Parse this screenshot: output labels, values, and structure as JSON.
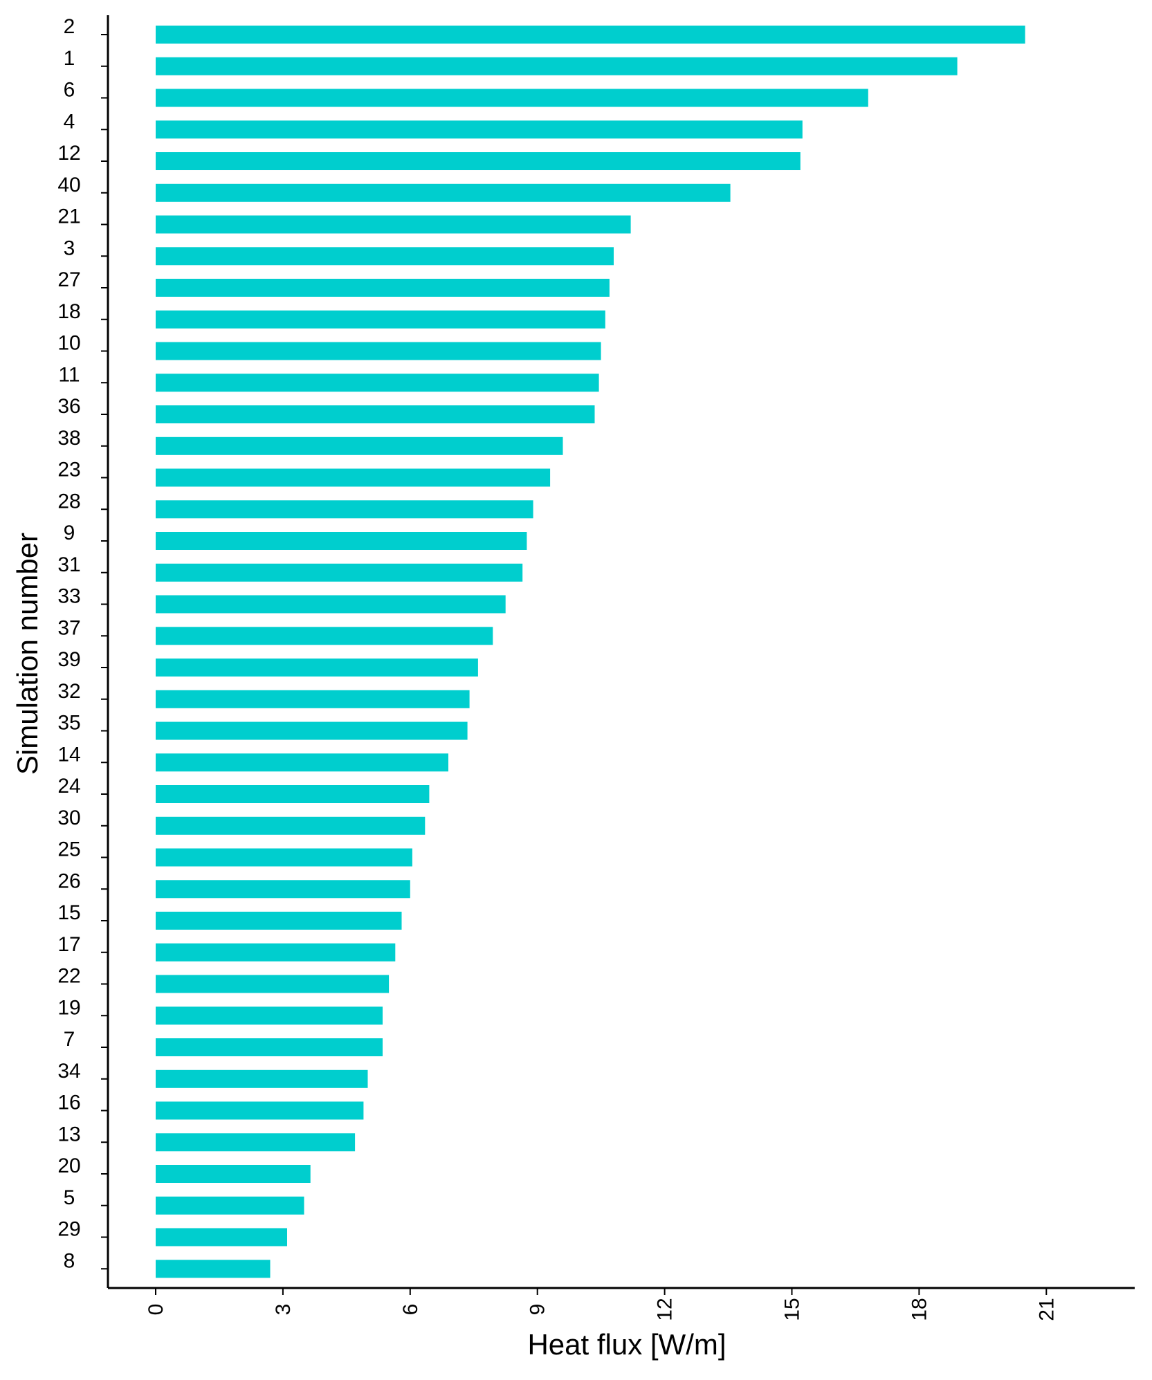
{
  "colors": {
    "bar": "#00CECE",
    "axis": "#000000",
    "background": "#FFFFFF"
  },
  "chart_data": {
    "type": "bar",
    "orientation": "horizontal",
    "title": "",
    "xlabel": "Heat flux [W/m]",
    "ylabel": "Simulation number",
    "xlim": [
      0,
      23
    ],
    "xticks": [
      0,
      3,
      6,
      9,
      12,
      15,
      18,
      21
    ],
    "grid": false,
    "categories": [
      "2",
      "1",
      "6",
      "4",
      "12",
      "40",
      "21",
      "3",
      "27",
      "18",
      "10",
      "11",
      "36",
      "38",
      "23",
      "28",
      "9",
      "31",
      "33",
      "37",
      "39",
      "32",
      "35",
      "14",
      "24",
      "30",
      "25",
      "26",
      "15",
      "17",
      "22",
      "19",
      "7",
      "34",
      "16",
      "13",
      "20",
      "5",
      "29",
      "8"
    ],
    "values": [
      20.5,
      18.9,
      16.8,
      15.25,
      15.2,
      13.55,
      11.2,
      10.8,
      10.7,
      10.6,
      10.5,
      10.45,
      10.35,
      9.6,
      9.3,
      8.9,
      8.75,
      8.65,
      8.25,
      7.95,
      7.6,
      7.4,
      7.35,
      6.9,
      6.45,
      6.35,
      6.05,
      6.0,
      5.8,
      5.65,
      5.5,
      5.35,
      5.35,
      5.0,
      4.9,
      4.7,
      3.65,
      3.5,
      3.1,
      2.7
    ]
  }
}
